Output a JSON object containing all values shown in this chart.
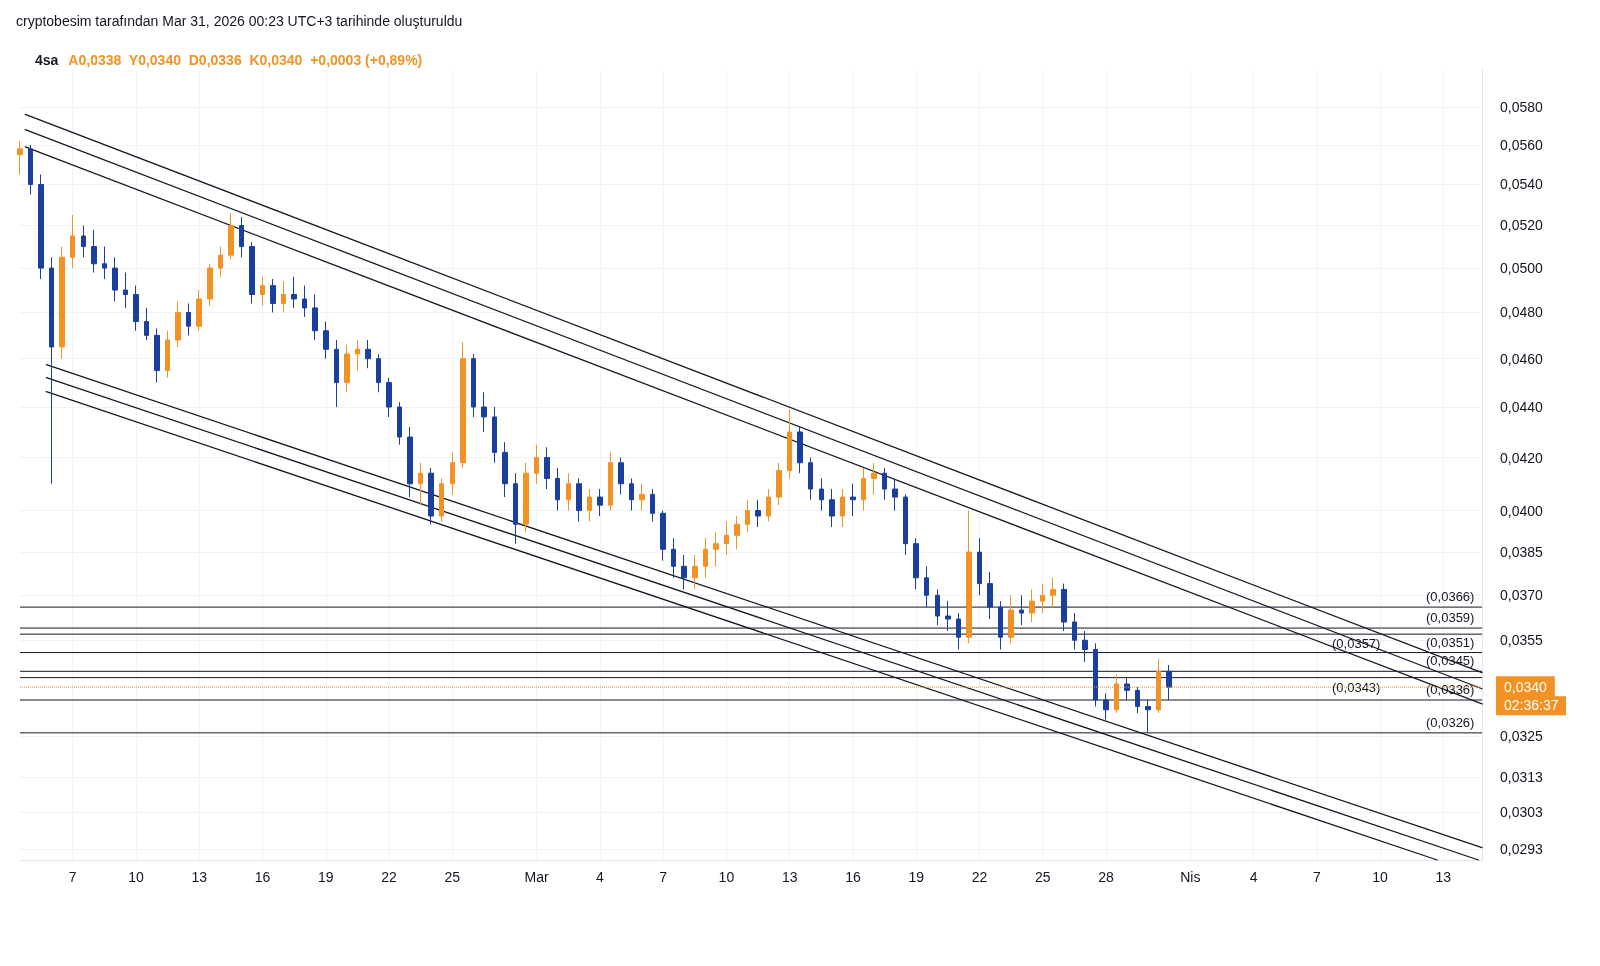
{
  "chart_data": {
    "type": "candlestick",
    "title": "4sa",
    "subtitle": "A0,0338  Y0,0340  D0,0336  K0,0340  +0,0003 (+0,89%)",
    "annotations": [
      "cryptobesim tarafından Mar 31, 2026 00:23 UTC+3 tarihinde oluşturuldu",
      "02:36:37"
    ],
    "log": "y",
    "grid": true,
    "xlim": [
      "2026-02-04T12:00",
      "2026-04-14T20:00"
    ],
    "xticks": [
      {
        "value": "2026-02-07",
        "label": "7"
      },
      {
        "value": "2026-02-10",
        "label": "10"
      },
      {
        "value": "2026-02-13",
        "label": "13"
      },
      {
        "value": "2026-02-16",
        "label": "16"
      },
      {
        "value": "2026-02-19",
        "label": "19"
      },
      {
        "value": "2026-02-22",
        "label": "22"
      },
      {
        "value": "2026-02-25",
        "label": "25"
      },
      {
        "value": "2026-03-01",
        "label": "Mar"
      },
      {
        "value": "2026-03-04",
        "label": "4"
      },
      {
        "value": "2026-03-07",
        "label": "7"
      },
      {
        "value": "2026-03-10",
        "label": "10"
      },
      {
        "value": "2026-03-13",
        "label": "13"
      },
      {
        "value": "2026-03-16",
        "label": "16"
      },
      {
        "value": "2026-03-19",
        "label": "19"
      },
      {
        "value": "2026-03-22",
        "label": "22"
      },
      {
        "value": "2026-03-25",
        "label": "25"
      },
      {
        "value": "2026-03-28",
        "label": "28"
      },
      {
        "value": "2026-04-01",
        "label": "Nis"
      },
      {
        "value": "2026-04-04",
        "label": "4"
      },
      {
        "value": "2026-04-07",
        "label": "7"
      },
      {
        "value": "2026-04-10",
        "label": "10"
      },
      {
        "value": "2026-04-13",
        "label": "13"
      }
    ],
    "ylim": [
      0.029,
      0.06
    ],
    "yticks": [
      {
        "value": 0.058,
        "label": "0,0580"
      },
      {
        "value": 0.056,
        "label": "0,0560"
      },
      {
        "value": 0.054,
        "label": "0,0540"
      },
      {
        "value": 0.052,
        "label": "0,0520"
      },
      {
        "value": 0.05,
        "label": "0,0500"
      },
      {
        "value": 0.048,
        "label": "0,0480"
      },
      {
        "value": 0.046,
        "label": "0,0460"
      },
      {
        "value": 0.044,
        "label": "0,0440"
      },
      {
        "value": 0.042,
        "label": "0,0420"
      },
      {
        "value": 0.04,
        "label": "0,0400"
      },
      {
        "value": 0.0385,
        "label": "0,0385"
      },
      {
        "value": 0.037,
        "label": "0,0370"
      },
      {
        "value": 0.0355,
        "label": "0,0355"
      },
      {
        "value": 0.0325,
        "label": "0,0325"
      },
      {
        "value": 0.0313,
        "label": "0,0313"
      },
      {
        "value": 0.0303,
        "label": "0,0303"
      },
      {
        "value": 0.0293,
        "label": "0,0293"
      }
    ],
    "ref_lines": [
      {
        "axis": "y",
        "value": 0.0366,
        "label": "(0,0366)",
        "color": "#131722"
      },
      {
        "axis": "y",
        "value": 0.0359,
        "label": "(0,0359)",
        "color": "#131722"
      },
      {
        "axis": "y",
        "value": 0.0357,
        "label": "(0,0357)",
        "color": "#131722"
      },
      {
        "axis": "y",
        "value": 0.0351,
        "label": "(0,0351)",
        "color": "#131722"
      },
      {
        "axis": "y",
        "value": 0.0345,
        "label": "(0,0345)",
        "color": "#131722"
      },
      {
        "axis": "y",
        "value": 0.0343,
        "label": "(0,0343)",
        "color": "#131722"
      },
      {
        "axis": "y",
        "value": 0.0336,
        "label": "(0,0336)",
        "color": "#131722"
      },
      {
        "axis": "y",
        "value": 0.0326,
        "label": "(0,0326)",
        "color": "#131722"
      },
      {
        "axis": "y",
        "value": 0.034,
        "label": "0,0340",
        "color": "#f39224",
        "line_style": "dotted"
      }
    ],
    "series": [
      {
        "type": "line",
        "color": "#131722",
        "x": [
          "2026-02-04T18:00",
          "2026-04-14T20:00"
        ],
        "values": [
          0.0576,
          0.03446
        ]
      },
      {
        "type": "line",
        "color": "#131722",
        "x": [
          "2026-02-04T18:00",
          "2026-04-14T20:00"
        ],
        "values": [
          0.0568,
          0.03395
        ]
      },
      {
        "type": "line",
        "color": "#131722",
        "x": [
          "2026-02-04T18:00",
          "2026-04-14T20:00"
        ],
        "values": [
          0.0559,
          0.03348
        ]
      },
      {
        "type": "line",
        "color": "#131722",
        "x": [
          "2026-02-05T18:00",
          "2026-04-14T20:00"
        ],
        "values": [
          0.04575,
          0.02933
        ]
      },
      {
        "type": "line",
        "color": "#131722",
        "x": [
          "2026-02-05T18:00",
          "2026-04-14T16:00"
        ],
        "values": [
          0.04521,
          0.029
        ]
      },
      {
        "type": "line",
        "color": "#131722",
        "x": [
          "2026-02-05T18:00",
          "2026-04-12T17:00"
        ],
        "values": [
          0.04463,
          0.029
        ]
      },
      {
        "type": "candlestick",
        "x": [
          "2026-02-04T12:00",
          "2026-02-05T00:00",
          "2026-02-05T12:00",
          "2026-02-06T00:00",
          "2026-02-06T12:00",
          "2026-02-07T00:00",
          "2026-02-07T12:00",
          "2026-02-08T00:00",
          "2026-02-08T12:00",
          "2026-02-09T00:00",
          "2026-02-09T12:00",
          "2026-02-10T00:00",
          "2026-02-10T12:00",
          "2026-02-11T00:00",
          "2026-02-11T12:00",
          "2026-02-12T00:00",
          "2026-02-12T12:00",
          "2026-02-13T00:00",
          "2026-02-13T12:00",
          "2026-02-14T00:00",
          "2026-02-14T12:00",
          "2026-02-15T00:00",
          "2026-02-15T12:00",
          "2026-02-16T00:00",
          "2026-02-16T12:00",
          "2026-02-17T00:00",
          "2026-02-17T12:00",
          "2026-02-18T00:00",
          "2026-02-18T12:00",
          "2026-02-19T00:00",
          "2026-02-19T12:00",
          "2026-02-20T00:00",
          "2026-02-20T12:00",
          "2026-02-21T00:00",
          "2026-02-21T12:00",
          "2026-02-22T00:00",
          "2026-02-22T12:00",
          "2026-02-23T00:00",
          "2026-02-23T12:00",
          "2026-02-24T00:00",
          "2026-02-24T12:00",
          "2026-02-25T00:00",
          "2026-02-25T12:00",
          "2026-02-26T00:00",
          "2026-02-26T12:00",
          "2026-02-27T00:00",
          "2026-02-27T12:00",
          "2026-02-28T00:00",
          "2026-02-28T12:00",
          "2026-03-01T00:00",
          "2026-03-01T12:00",
          "2026-03-02T00:00",
          "2026-03-02T12:00",
          "2026-03-03T00:00",
          "2026-03-03T12:00",
          "2026-03-04T00:00",
          "2026-03-04T12:00",
          "2026-03-05T00:00",
          "2026-03-05T12:00",
          "2026-03-06T00:00",
          "2026-03-06T12:00",
          "2026-03-07T00:00",
          "2026-03-07T12:00",
          "2026-03-08T00:00",
          "2026-03-08T12:00",
          "2026-03-09T00:00",
          "2026-03-09T12:00",
          "2026-03-10T00:00",
          "2026-03-10T12:00",
          "2026-03-11T00:00",
          "2026-03-11T12:00",
          "2026-03-12T00:00",
          "2026-03-12T12:00",
          "2026-03-13T00:00",
          "2026-03-13T12:00",
          "2026-03-14T00:00",
          "2026-03-14T12:00",
          "2026-03-15T00:00",
          "2026-03-15T12:00",
          "2026-03-16T00:00",
          "2026-03-16T12:00",
          "2026-03-17T00:00",
          "2026-03-17T12:00",
          "2026-03-18T00:00",
          "2026-03-18T12:00",
          "2026-03-19T00:00",
          "2026-03-19T12:00",
          "2026-03-20T00:00",
          "2026-03-20T12:00",
          "2026-03-21T00:00",
          "2026-03-21T12:00",
          "2026-03-22T00:00",
          "2026-03-22T12:00",
          "2026-03-23T00:00",
          "2026-03-23T12:00",
          "2026-03-24T00:00",
          "2026-03-24T12:00",
          "2026-03-25T00:00",
          "2026-03-25T12:00",
          "2026-03-26T00:00",
          "2026-03-26T12:00",
          "2026-03-27T00:00",
          "2026-03-27T12:00",
          "2026-03-28T00:00",
          "2026-03-28T12:00",
          "2026-03-29T00:00",
          "2026-03-29T12:00",
          "2026-03-30T00:00",
          "2026-03-30T12:00",
          "2026-03-31T00:00"
        ],
        "ohlc": [
          [
            0.0555,
            0.0562,
            0.0545,
            0.0558
          ],
          [
            0.0558,
            0.056,
            0.0535,
            0.054
          ],
          [
            0.054,
            0.0545,
            0.0495,
            0.05
          ],
          [
            0.05,
            0.0505,
            0.041,
            0.0465
          ],
          [
            0.0465,
            0.051,
            0.046,
            0.0505
          ],
          [
            0.0505,
            0.0525,
            0.05,
            0.0515
          ],
          [
            0.0515,
            0.052,
            0.0505,
            0.051
          ],
          [
            0.051,
            0.0518,
            0.0498,
            0.0502
          ],
          [
            0.0502,
            0.051,
            0.0495,
            0.05
          ],
          [
            0.05,
            0.0505,
            0.0485,
            0.049
          ],
          [
            0.049,
            0.0498,
            0.0482,
            0.0488
          ],
          [
            0.0488,
            0.0492,
            0.0472,
            0.0476
          ],
          [
            0.0476,
            0.0482,
            0.0468,
            0.047
          ],
          [
            0.047,
            0.0473,
            0.045,
            0.0455
          ],
          [
            0.0455,
            0.0472,
            0.0452,
            0.0468
          ],
          [
            0.0468,
            0.0485,
            0.0465,
            0.048
          ],
          [
            0.048,
            0.0484,
            0.047,
            0.0474
          ],
          [
            0.0474,
            0.049,
            0.0472,
            0.0486
          ],
          [
            0.0486,
            0.0502,
            0.0483,
            0.05
          ],
          [
            0.05,
            0.051,
            0.0496,
            0.0506
          ],
          [
            0.0506,
            0.0526,
            0.0504,
            0.052
          ],
          [
            0.052,
            0.0524,
            0.0505,
            0.051
          ],
          [
            0.051,
            0.0512,
            0.0484,
            0.0488
          ],
          [
            0.0488,
            0.0496,
            0.0483,
            0.0492
          ],
          [
            0.0492,
            0.0495,
            0.048,
            0.0484
          ],
          [
            0.0484,
            0.0494,
            0.048,
            0.0488
          ],
          [
            0.0488,
            0.0496,
            0.0482,
            0.0486
          ],
          [
            0.0486,
            0.0492,
            0.0478,
            0.0482
          ],
          [
            0.0482,
            0.0488,
            0.0468,
            0.0472
          ],
          [
            0.0472,
            0.0476,
            0.046,
            0.0464
          ],
          [
            0.0464,
            0.0468,
            0.044,
            0.045
          ],
          [
            0.045,
            0.0466,
            0.0446,
            0.0462
          ],
          [
            0.0462,
            0.0468,
            0.0455,
            0.0464
          ],
          [
            0.0464,
            0.0468,
            0.0456,
            0.046
          ],
          [
            0.046,
            0.0462,
            0.0446,
            0.045
          ],
          [
            0.045,
            0.0452,
            0.0436,
            0.044
          ],
          [
            0.044,
            0.0442,
            0.0425,
            0.0428
          ],
          [
            0.0428,
            0.0432,
            0.0405,
            0.041
          ],
          [
            0.041,
            0.0418,
            0.0402,
            0.0414
          ],
          [
            0.0414,
            0.0416,
            0.0395,
            0.0398
          ],
          [
            0.0398,
            0.0412,
            0.0396,
            0.041
          ],
          [
            0.041,
            0.0422,
            0.0406,
            0.0418
          ],
          [
            0.0418,
            0.0467,
            0.0416,
            0.046
          ],
          [
            0.046,
            0.0462,
            0.0436,
            0.044
          ],
          [
            0.044,
            0.0446,
            0.043,
            0.0436
          ],
          [
            0.0436,
            0.044,
            0.0418,
            0.0422
          ],
          [
            0.0422,
            0.0426,
            0.0405,
            0.041
          ],
          [
            0.041,
            0.0414,
            0.0388,
            0.0395
          ],
          [
            0.0395,
            0.0418,
            0.0392,
            0.0414
          ],
          [
            0.0414,
            0.0425,
            0.041,
            0.042
          ],
          [
            0.042,
            0.0424,
            0.0408,
            0.0412
          ],
          [
            0.0412,
            0.0416,
            0.04,
            0.0404
          ],
          [
            0.0404,
            0.0414,
            0.04,
            0.041
          ],
          [
            0.041,
            0.0412,
            0.0396,
            0.04
          ],
          [
            0.04,
            0.0408,
            0.0396,
            0.0405
          ],
          [
            0.0405,
            0.0408,
            0.0398,
            0.0402
          ],
          [
            0.0402,
            0.0422,
            0.04,
            0.0418
          ],
          [
            0.0418,
            0.042,
            0.0406,
            0.041
          ],
          [
            0.041,
            0.0412,
            0.04,
            0.0404
          ],
          [
            0.0404,
            0.041,
            0.04,
            0.0406
          ],
          [
            0.0406,
            0.0408,
            0.0396,
            0.0399
          ],
          [
            0.0399,
            0.04,
            0.0382,
            0.0386
          ],
          [
            0.0386,
            0.039,
            0.0376,
            0.038
          ],
          [
            0.038,
            0.0384,
            0.0372,
            0.0376
          ],
          [
            0.0376,
            0.0384,
            0.0372,
            0.038
          ],
          [
            0.038,
            0.039,
            0.0376,
            0.0386
          ],
          [
            0.0386,
            0.0392,
            0.038,
            0.0388
          ],
          [
            0.0388,
            0.0396,
            0.0384,
            0.0391
          ],
          [
            0.0391,
            0.0398,
            0.0386,
            0.0395
          ],
          [
            0.0395,
            0.0404,
            0.0392,
            0.04
          ],
          [
            0.04,
            0.0404,
            0.0394,
            0.0398
          ],
          [
            0.0398,
            0.0408,
            0.0396,
            0.0405
          ],
          [
            0.0405,
            0.0418,
            0.0402,
            0.0415
          ],
          [
            0.0415,
            0.0439,
            0.0412,
            0.043
          ],
          [
            0.043,
            0.0432,
            0.0414,
            0.0418
          ],
          [
            0.0418,
            0.042,
            0.0404,
            0.0408
          ],
          [
            0.0408,
            0.0412,
            0.04,
            0.0404
          ],
          [
            0.0404,
            0.0408,
            0.0394,
            0.0398
          ],
          [
            0.0398,
            0.0408,
            0.0394,
            0.0405
          ],
          [
            0.0405,
            0.041,
            0.0398,
            0.0404
          ],
          [
            0.0404,
            0.0416,
            0.04,
            0.0412
          ],
          [
            0.0412,
            0.0418,
            0.0406,
            0.0414
          ],
          [
            0.0414,
            0.0416,
            0.0404,
            0.0408
          ],
          [
            0.0408,
            0.0412,
            0.04,
            0.0405
          ],
          [
            0.0405,
            0.0406,
            0.0384,
            0.0388
          ],
          [
            0.0388,
            0.039,
            0.0372,
            0.0376
          ],
          [
            0.0376,
            0.038,
            0.0366,
            0.037
          ],
          [
            0.037,
            0.0372,
            0.036,
            0.0363
          ],
          [
            0.0363,
            0.0368,
            0.0358,
            0.0362
          ],
          [
            0.0362,
            0.0364,
            0.0352,
            0.0356
          ],
          [
            0.0356,
            0.04,
            0.0354,
            0.0385
          ],
          [
            0.0385,
            0.039,
            0.037,
            0.0374
          ],
          [
            0.0374,
            0.0378,
            0.0362,
            0.0366
          ],
          [
            0.0366,
            0.0368,
            0.0352,
            0.0356
          ],
          [
            0.0356,
            0.037,
            0.0354,
            0.0365
          ],
          [
            0.0365,
            0.037,
            0.036,
            0.0364
          ],
          [
            0.0364,
            0.0372,
            0.0361,
            0.0368
          ],
          [
            0.0368,
            0.0374,
            0.0364,
            0.037
          ],
          [
            0.037,
            0.0376,
            0.0366,
            0.0372
          ],
          [
            0.0372,
            0.0374,
            0.0358,
            0.0361
          ],
          [
            0.0361,
            0.0364,
            0.0352,
            0.0355
          ],
          [
            0.0355,
            0.0358,
            0.0348,
            0.0352
          ],
          [
            0.0352,
            0.0354,
            0.0334,
            0.0336
          ],
          [
            0.0336,
            0.0338,
            0.033,
            0.0333
          ],
          [
            0.0333,
            0.0344,
            0.0332,
            0.0341
          ],
          [
            0.0341,
            0.0343,
            0.0336,
            0.0339
          ],
          [
            0.0339,
            0.034,
            0.0332,
            0.0334
          ],
          [
            0.0334,
            0.0336,
            0.0326,
            0.0333
          ],
          [
            0.0333,
            0.0349,
            0.0332,
            0.0345
          ],
          [
            0.0345,
            0.0347,
            0.0336,
            0.034
          ]
        ],
        "colors": [
          "#f39224",
          "#1b3f9e",
          "#1b3f9e",
          "#1b3f9e",
          "#f39224",
          "#f39224",
          "#1b3f9e",
          "#1b3f9e",
          "#1b3f9e",
          "#1b3f9e",
          "#1b3f9e",
          "#1b3f9e",
          "#1b3f9e",
          "#1b3f9e",
          "#f39224",
          "#f39224",
          "#1b3f9e",
          "#f39224",
          "#f39224",
          "#f39224",
          "#f39224",
          "#1b3f9e",
          "#1b3f9e",
          "#f39224",
          "#1b3f9e",
          "#f39224",
          "#1b3f9e",
          "#1b3f9e",
          "#1b3f9e",
          "#1b3f9e",
          "#1b3f9e",
          "#f39224",
          "#f39224",
          "#1b3f9e",
          "#1b3f9e",
          "#1b3f9e",
          "#1b3f9e",
          "#1b3f9e",
          "#f39224",
          "#1b3f9e",
          "#f39224",
          "#f39224",
          "#f39224",
          "#1b3f9e",
          "#1b3f9e",
          "#1b3f9e",
          "#1b3f9e",
          "#1b3f9e",
          "#f39224",
          "#f39224",
          "#1b3f9e",
          "#1b3f9e",
          "#f39224",
          "#1b3f9e",
          "#f39224",
          "#1b3f9e",
          "#f39224",
          "#1b3f9e",
          "#1b3f9e",
          "#f39224",
          "#1b3f9e",
          "#1b3f9e",
          "#1b3f9e",
          "#1b3f9e",
          "#f39224",
          "#f39224",
          "#f39224",
          "#f39224",
          "#f39224",
          "#f39224",
          "#1b3f9e",
          "#f39224",
          "#f39224",
          "#f39224",
          "#1b3f9e",
          "#1b3f9e",
          "#1b3f9e",
          "#1b3f9e",
          "#f39224",
          "#1b3f9e",
          "#f39224",
          "#f39224",
          "#1b3f9e",
          "#1b3f9e",
          "#1b3f9e",
          "#1b3f9e",
          "#1b3f9e",
          "#1b3f9e",
          "#1b3f9e",
          "#1b3f9e",
          "#f39224",
          "#1b3f9e",
          "#1b3f9e",
          "#1b3f9e",
          "#f39224",
          "#1b3f9e",
          "#f39224",
          "#f39224",
          "#f39224",
          "#1b3f9e",
          "#1b3f9e",
          "#1b3f9e",
          "#1b3f9e",
          "#1b3f9e",
          "#f39224",
          "#1b3f9e",
          "#1b3f9e",
          "#1b3f9e",
          "#f39224",
          "#1b3f9e"
        ]
      }
    ]
  }
}
